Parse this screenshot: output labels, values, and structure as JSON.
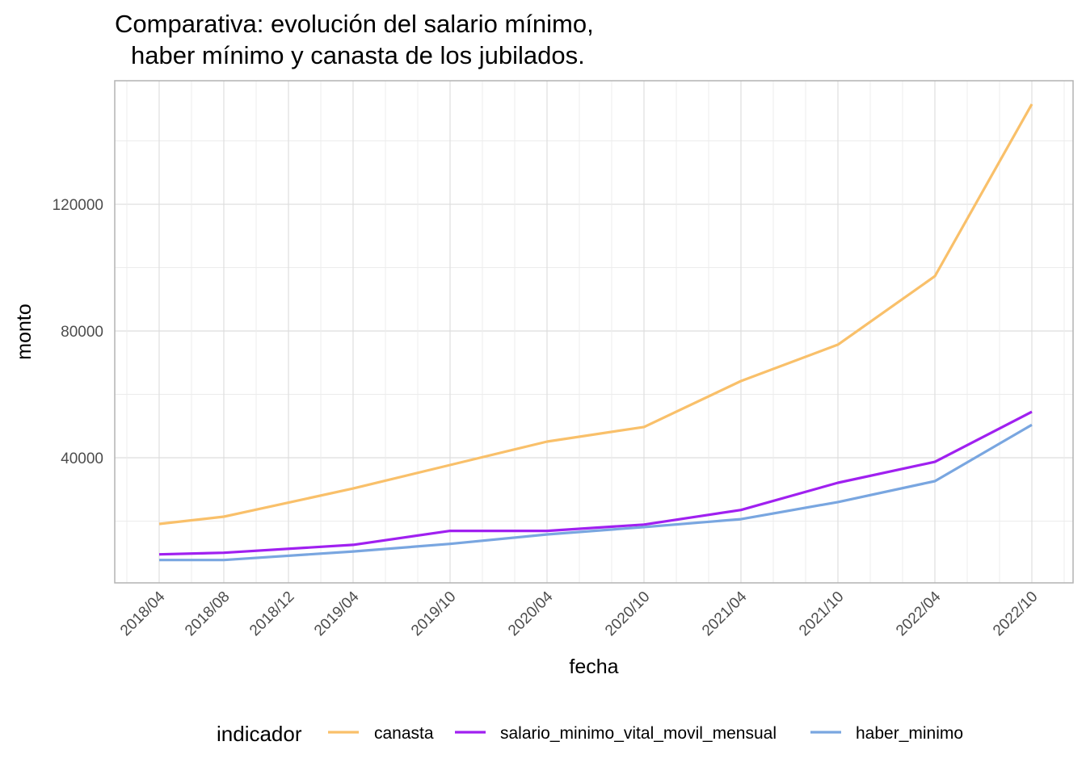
{
  "chart_data": {
    "type": "line",
    "title_lines": [
      "Comparativa: evolución del salario mínimo,",
      "haber mínimo y canasta de los jubilados."
    ],
    "xlabel": "fecha",
    "ylabel": "monto",
    "x_tick_labels": [
      "2018/04",
      "2018/08",
      "2018/12",
      "2019/04",
      "2019/10",
      "2020/04",
      "2020/10",
      "2021/04",
      "2021/10",
      "2022/04",
      "2022/10"
    ],
    "x_tick_months": [
      0,
      4,
      8,
      12,
      18,
      24,
      30,
      36,
      42,
      48,
      54
    ],
    "x": [
      "2018/04",
      "2018/08",
      "2019/04",
      "2019/10",
      "2020/04",
      "2020/10",
      "2021/04",
      "2021/10",
      "2022/04",
      "2022/10"
    ],
    "x_months": [
      0,
      4,
      12,
      18,
      24,
      30,
      36,
      42,
      48,
      54
    ],
    "xlim_months": [
      -2.75,
      56.55
    ],
    "y_ticks": [
      40000,
      80000,
      120000
    ],
    "y_tick_labels": [
      "40000",
      "80000",
      "120000"
    ],
    "ylim": [
      500,
      159000
    ],
    "grid": true,
    "legend_title": "indicador",
    "legend_position": "bottom",
    "series": [
      {
        "name": "canasta",
        "color": "#F9C06A",
        "values": [
          19100,
          21400,
          30300,
          37700,
          45100,
          49700,
          64200,
          75700,
          97300,
          151600
        ]
      },
      {
        "name": "salario_minimo_vital_movil_mensual",
        "color": "#A020F0",
        "values": [
          9500,
          10000,
          12500,
          16900,
          16900,
          18900,
          23500,
          32100,
          38700,
          54500
        ]
      },
      {
        "name": "haber_minimo",
        "color": "#79A6E0",
        "values": [
          7700,
          7700,
          10400,
          12800,
          15800,
          18100,
          20600,
          26000,
          32600,
          50400
        ]
      }
    ]
  }
}
